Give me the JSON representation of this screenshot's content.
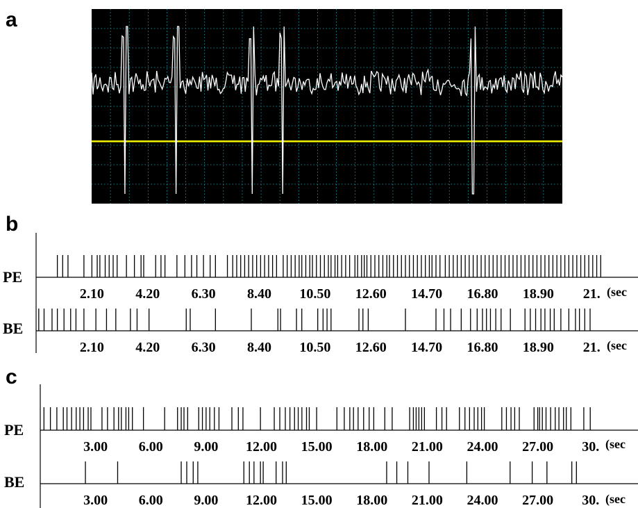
{
  "panels": {
    "a": {
      "letter": "a"
    },
    "b": {
      "letter": "b"
    },
    "c": {
      "letter": "c"
    }
  },
  "colors": {
    "oscilloscope_background": "#000000",
    "grid": "#19a9b8",
    "trace": "#ffffff",
    "threshold": "#f5f500"
  },
  "chart_data": [
    {
      "panel": "a",
      "type": "line",
      "title": "",
      "xlabel": "",
      "ylabel": "",
      "grid": true,
      "description_values": "raw extracellular voltage trace with 5 large biphasic spikes and a horizontal detection threshold",
      "spike_positions_fraction": [
        0.07,
        0.18,
        0.34,
        0.405,
        0.81
      ],
      "threshold_level_fraction": 0.68
    },
    {
      "panel": "b",
      "type": "scatter",
      "xlim": [
        0,
        22
      ],
      "unit_label": "(sec",
      "tick_labels": [
        "2.10",
        "4.20",
        "6.30",
        "8.40",
        "10.50",
        "12.60",
        "14.70",
        "16.80",
        "18.90",
        "21."
      ],
      "ticks": [
        2.1,
        4.2,
        6.3,
        8.4,
        10.5,
        12.6,
        14.7,
        16.8,
        18.9,
        21.0
      ],
      "series": [
        {
          "name": "PE",
          "values": [
            0.8,
            1.0,
            1.2,
            1.8,
            2.1,
            2.3,
            2.4,
            2.6,
            2.75,
            2.9,
            3.05,
            3.4,
            3.7,
            3.95,
            4.05,
            4.5,
            4.7,
            4.85,
            5.3,
            5.6,
            5.85,
            6.05,
            6.3,
            6.55,
            6.75,
            7.2,
            7.4,
            7.55,
            7.7,
            7.85,
            8.0,
            8.15,
            8.3,
            8.45,
            8.6,
            8.75,
            8.9,
            9.05,
            9.3,
            9.45,
            9.6,
            9.75,
            9.9,
            10.0,
            10.15,
            10.3,
            10.4,
            10.55,
            10.7,
            10.85,
            11.0,
            11.1,
            11.25,
            11.35,
            11.5,
            11.65,
            11.8,
            12.0,
            12.1,
            12.25,
            12.35,
            12.45,
            12.6,
            12.75,
            12.9,
            13.05,
            13.2,
            13.3,
            13.45,
            13.6,
            13.75,
            13.9,
            14.05,
            14.2,
            14.35,
            14.5,
            14.65,
            14.8,
            14.9,
            15.05,
            15.2,
            15.4,
            15.55,
            15.7,
            15.85,
            16.0,
            16.15,
            16.3,
            16.45,
            16.6,
            16.75,
            16.9,
            17.05,
            17.2,
            17.35,
            17.5,
            17.65,
            17.8,
            17.95,
            18.1,
            18.25,
            18.4,
            18.55,
            18.7,
            18.85,
            19.0,
            19.15,
            19.3,
            19.45,
            19.6,
            19.75,
            19.9,
            20.05,
            20.2,
            20.35,
            20.5,
            20.65,
            20.8,
            20.95,
            21.1,
            21.25
          ]
        },
        {
          "name": "BE",
          "values": [
            0.1,
            0.3,
            0.6,
            0.8,
            1.05,
            1.3,
            1.5,
            1.8,
            2.25,
            2.65,
            3.0,
            3.55,
            3.8,
            4.25,
            5.65,
            5.8,
            6.75,
            8.1,
            9.1,
            9.2,
            9.8,
            10.0,
            10.6,
            10.8,
            10.95,
            11.1,
            12.15,
            12.3,
            12.5,
            13.9,
            15.05,
            15.35,
            15.6,
            16.0,
            16.35,
            16.6,
            16.8,
            16.95,
            17.1,
            17.3,
            17.5,
            17.85,
            18.4,
            18.6,
            18.8,
            19.0,
            19.15,
            19.35,
            19.5,
            19.75,
            20.05,
            20.3,
            20.45,
            20.65,
            20.85
          ]
        }
      ]
    },
    {
      "panel": "c",
      "type": "scatter",
      "xlim": [
        0,
        31.5
      ],
      "unit_label": "(sec",
      "tick_labels": [
        "3.00",
        "6.00",
        "9.00",
        "12.00",
        "15.00",
        "18.00",
        "21.00",
        "24.00",
        "27.00",
        "30."
      ],
      "ticks": [
        3.0,
        6.0,
        9.0,
        12.0,
        15.0,
        18.0,
        21.0,
        24.0,
        27.0,
        30.0
      ],
      "series": [
        {
          "name": "PE",
          "values": [
            0.2,
            0.55,
            0.9,
            1.25,
            1.45,
            1.7,
            1.95,
            2.15,
            2.35,
            2.6,
            2.75,
            3.35,
            3.65,
            4.0,
            4.25,
            4.4,
            4.65,
            4.8,
            5.0,
            5.6,
            6.75,
            7.45,
            7.65,
            7.8,
            8.0,
            8.6,
            8.8,
            9.0,
            9.2,
            9.45,
            9.7,
            10.4,
            10.75,
            11.0,
            11.95,
            12.7,
            13.0,
            13.3,
            13.55,
            13.8,
            14.0,
            14.2,
            14.45,
            14.6,
            15.0,
            16.1,
            16.5,
            16.8,
            17.0,
            17.25,
            17.55,
            17.85,
            18.1,
            18.7,
            19.1,
            20.05,
            20.25,
            20.4,
            20.55,
            20.7,
            20.85,
            21.5,
            21.8,
            22.05,
            22.75,
            23.05,
            23.3,
            23.55,
            23.75,
            23.95,
            24.1,
            25.05,
            25.3,
            25.55,
            25.75,
            26.0,
            26.8,
            27.0,
            27.1,
            27.25,
            27.45,
            27.7,
            27.95,
            28.15,
            28.4,
            28.55,
            28.8,
            29.5,
            29.85
          ]
        },
        {
          "name": "BE",
          "values": [
            2.45,
            4.2,
            7.65,
            7.95,
            8.3,
            8.55,
            11.05,
            11.35,
            11.6,
            11.95,
            12.1,
            12.8,
            13.15,
            13.35,
            18.8,
            19.35,
            19.95,
            21.1,
            23.15,
            25.5,
            26.7,
            27.5,
            28.85,
            29.1
          ]
        }
      ]
    }
  ]
}
